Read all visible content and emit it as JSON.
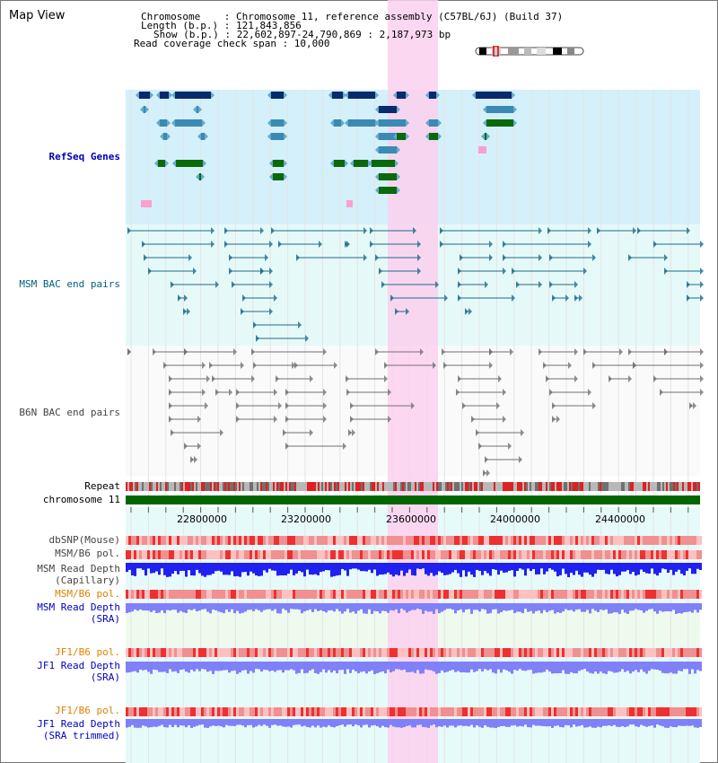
{
  "header": {
    "title": "Map View",
    "chromosome_line": "Chromosome    : Chromosome 11, reference assembly (C57BL/6J) (Build 37)",
    "length_line": "Length (b.p.) : 121,843,856",
    "show_line": "Show (b.p.) : 22,602,897-24,790,869 : 2,187,973 bp",
    "coverage_line": "Read coverage check span : 10,000"
  },
  "tracks": {
    "refseq": "RefSeq Genes",
    "msm_bac": "MSM BAC end pairs",
    "b6n_bac": "B6N BAC end pairs",
    "repeat": "Repeat",
    "chromosome": "chromosome 11",
    "dbsnp": "dbSNP(Mouse)",
    "msm_b6_pol_1": "MSM/B6 pol.",
    "msm_depth_cap_1": "MSM Read Depth",
    "msm_depth_cap_2": "(Capillary)",
    "msm_b6_pol_2": "MSM/B6 pol.",
    "msm_depth_sra_1": "MSM Read Depth",
    "msm_depth_sra_2": "(SRA)",
    "jf1_b6_pol_1": "JF1/B6 pol.",
    "jf1_depth_sra_1": "JF1 Read Depth",
    "jf1_depth_sra_2": "(SRA)",
    "jf1_b6_pol_2": "JF1/B6 pol.",
    "jf1_depth_trim_1": "JF1 Read Depth",
    "jf1_depth_trim_2": "(SRA trimmed)"
  },
  "axis": {
    "ticks": [
      "22800000",
      "23200000",
      "23600000",
      "24000000",
      "24400000"
    ]
  },
  "colors": {
    "refseq_bg": "#d4f0fa",
    "bac_bg": "#e6f9f9",
    "highlight": "#fbd0ef",
    "chromosome_bar": "#006600",
    "depth_blue": "#2020f0",
    "depth_light": "#8080f8"
  }
}
